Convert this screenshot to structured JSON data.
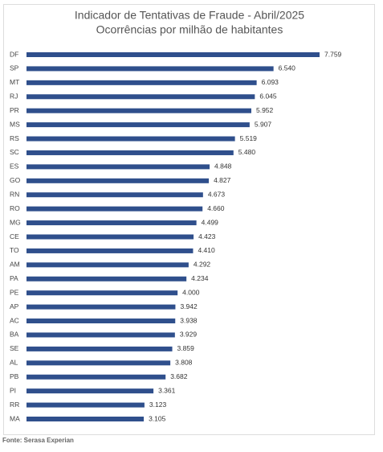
{
  "chart_data": {
    "type": "bar",
    "orientation": "horizontal",
    "title": "Indicador de Tentativas de Fraude - Abril/2025",
    "subtitle": "Ocorrências por milhão de habitantes",
    "categories": [
      "DF",
      "SP",
      "MT",
      "RJ",
      "PR",
      "MS",
      "RS",
      "SC",
      "ES",
      "GO",
      "RN",
      "RO",
      "MG",
      "CE",
      "TO",
      "AM",
      "PA",
      "PE",
      "AP",
      "AC",
      "BA",
      "SE",
      "AL",
      "PB",
      "PI",
      "RR",
      "MA"
    ],
    "values": [
      7759,
      6540,
      6093,
      6045,
      5952,
      5907,
      5519,
      5480,
      4848,
      4827,
      4673,
      4660,
      4499,
      4423,
      4410,
      4292,
      4234,
      4000,
      3942,
      3938,
      3929,
      3859,
      3808,
      3682,
      3361,
      3123,
      3105
    ],
    "value_labels": [
      "7.759",
      "6.540",
      "6.093",
      "6.045",
      "5.952",
      "5.907",
      "5.519",
      "5.480",
      "4.848",
      "4.827",
      "4.673",
      "4.660",
      "4.499",
      "4.423",
      "4.410",
      "4.292",
      "4.234",
      "4.000",
      "3.942",
      "3.938",
      "3.929",
      "3.859",
      "3.808",
      "3.682",
      "3.361",
      "3.123",
      "3.105"
    ],
    "color": "#2f4f8c",
    "source": "Fonte: Serasa Experian"
  }
}
